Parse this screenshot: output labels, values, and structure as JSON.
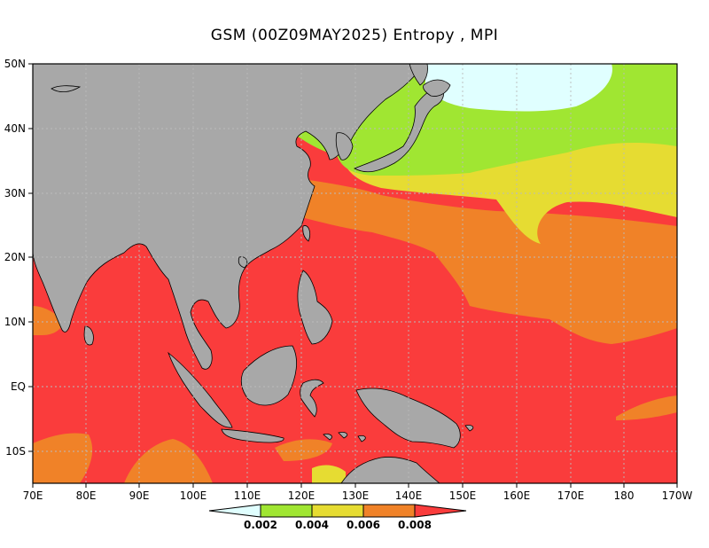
{
  "title": "GSM (00Z09MAY2025) Entropy , MPI",
  "axes": {
    "lon_ticks": [
      "70E",
      "80E",
      "90E",
      "100E",
      "110E",
      "120E",
      "130E",
      "140E",
      "150E",
      "160E",
      "170E",
      "180",
      "170W"
    ],
    "lat_ticks": [
      "50N",
      "40N",
      "30N",
      "20N",
      "10N",
      "EQ",
      "10S"
    ]
  },
  "colorbar": {
    "labels": [
      "0.002",
      "0.004",
      "0.006",
      "0.008"
    ],
    "colors": [
      "#e0ffff",
      "#a0e632",
      "#e6dc32",
      "#f08228",
      "#fa3c3c"
    ]
  },
  "colors": {
    "land": "#a8a8a8",
    "grid": "#bbbbbb"
  }
}
